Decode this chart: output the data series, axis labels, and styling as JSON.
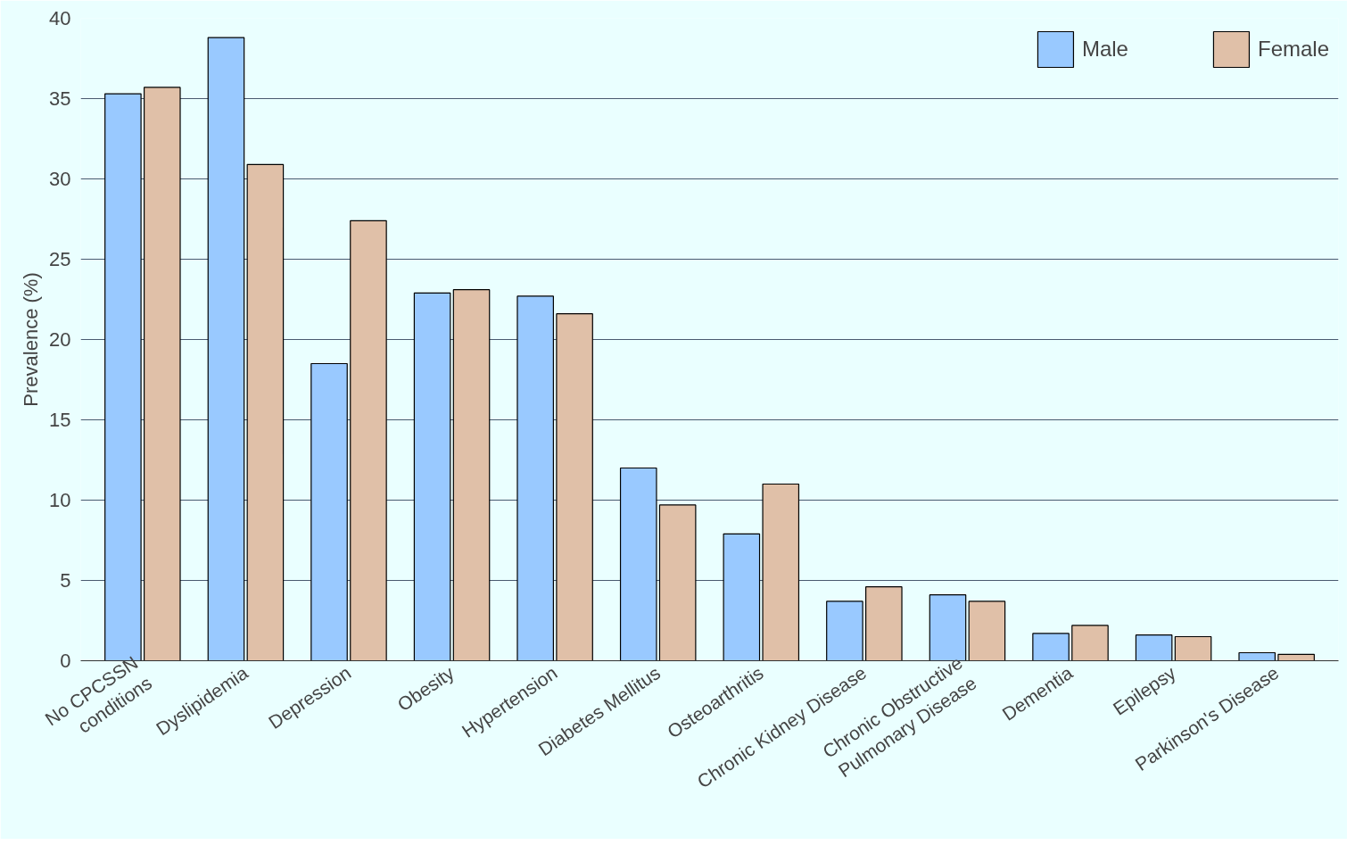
{
  "chart_data": {
    "type": "bar",
    "ylabel": "Prevalence (%)",
    "categories": [
      "No CPCSSN\nconditions",
      "Dyslipidemia",
      "Depression",
      "Obesity",
      "Hypertension",
      "Diabetes Mellitus",
      "Osteoarthritis",
      "Chronic Kidney Disease",
      "Chronic Obstructive\nPulmonary Disease",
      "Dementia",
      "Epilepsy",
      "Parkinson's Disease"
    ],
    "series": [
      {
        "name": "Male",
        "color": "#99c9ff",
        "values": [
          35.3,
          38.8,
          18.5,
          22.9,
          22.7,
          12.0,
          7.9,
          3.7,
          4.1,
          1.7,
          1.6,
          0.5
        ]
      },
      {
        "name": "Female",
        "color": "#e0c0a8",
        "values": [
          35.7,
          30.9,
          27.4,
          23.1,
          21.6,
          9.7,
          11.0,
          4.6,
          3.7,
          2.2,
          1.5,
          0.4
        ]
      }
    ],
    "ylim": [
      0,
      40
    ],
    "yticks": [
      0,
      5,
      10,
      15,
      20,
      25,
      30,
      35,
      40
    ],
    "grid": "y",
    "legend": "top right"
  }
}
